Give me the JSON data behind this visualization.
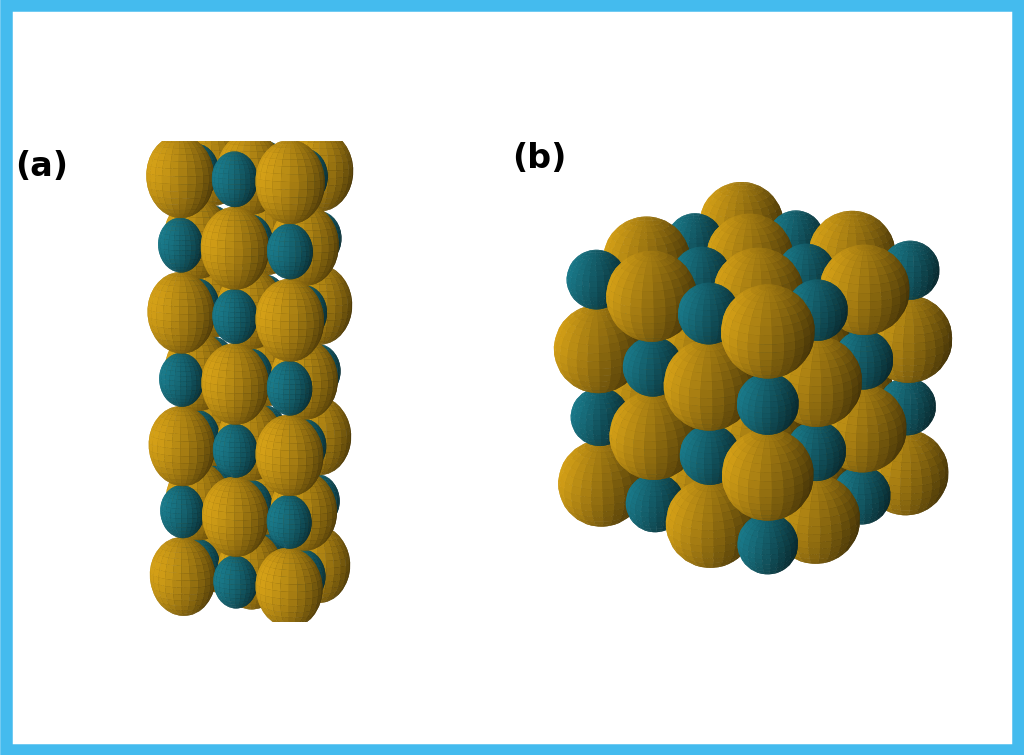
{
  "background_color": "#ffffff",
  "border_color": "#44bbee",
  "border_width": 8,
  "ca_color": "#d4a017",
  "s_color": "#1a7a8a",
  "bond_color_ca": "#c8900a",
  "bond_color_s": "#1a7a8a",
  "label_a": "(a)",
  "label_b": "(b)",
  "label_fontsize": 24,
  "figsize": [
    10.24,
    7.55
  ],
  "dpi": 100
}
